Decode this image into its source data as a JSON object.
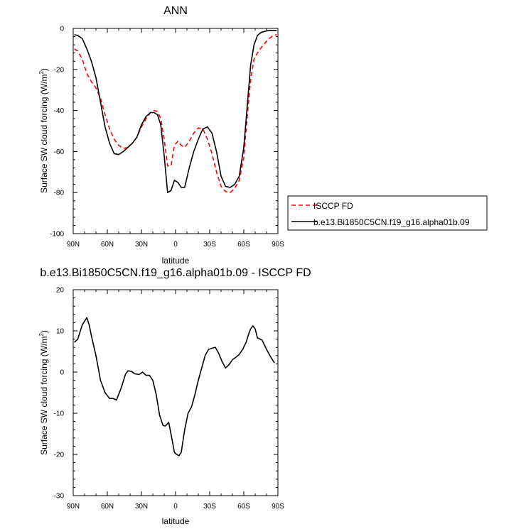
{
  "chart_data": [
    {
      "type": "line",
      "title": "ANN",
      "xlabel": "latitude",
      "ylabel": "Surface SW cloud forcing (W/m",
      "ylabel_sup": "2",
      "ylabel_close": ")",
      "xlim": [
        90,
        -90
      ],
      "ylim": [
        -100,
        0
      ],
      "x_ticks": [
        90,
        60,
        30,
        0,
        -30,
        -60,
        -90
      ],
      "x_tick_labels": [
        "90N",
        "60N",
        "30N",
        "0",
        "30S",
        "60S",
        "90S"
      ],
      "y_ticks": [
        0,
        -20,
        -40,
        -60,
        -80,
        -100
      ],
      "y_tick_labels": [
        "0",
        "-20",
        "-40",
        "-60",
        "-80",
        "-100"
      ],
      "legend_position": "right",
      "series": [
        {
          "name": "ISCCP FD",
          "color": "#ff0000",
          "dash": "dashed",
          "x": [
            89,
            86,
            82,
            78,
            74,
            70,
            66,
            62,
            58,
            54,
            50,
            46,
            42,
            38,
            34,
            30,
            26,
            22,
            19,
            16,
            13,
            10,
            7,
            4,
            1,
            -2,
            -5,
            -8,
            -12,
            -16,
            -20,
            -24,
            -28,
            -32,
            -36,
            -40,
            -44,
            -48,
            -52,
            -56,
            -60,
            -63,
            -66,
            -69,
            -72,
            -75,
            -78,
            -82,
            -86,
            -89
          ],
          "y": [
            -10,
            -11,
            -15,
            -22,
            -26,
            -29,
            -34,
            -42,
            -49,
            -54,
            -57,
            -58.5,
            -58,
            -56,
            -53,
            -48,
            -44,
            -41,
            -40,
            -40.5,
            -44,
            -54,
            -67,
            -67,
            -57,
            -55,
            -57,
            -58,
            -55,
            -51,
            -48.5,
            -49,
            -54,
            -61,
            -70,
            -77,
            -79.5,
            -80,
            -78,
            -74,
            -63,
            -43,
            -25,
            -15,
            -12,
            -9.5,
            -7.5,
            -5,
            -3.5,
            -3
          ]
        },
        {
          "name": "b.e13.Bi1850C5CN.f19_g16.alpha01b.09",
          "color": "#000000",
          "dash": "solid",
          "x": [
            89,
            86,
            82,
            78,
            74,
            70,
            66,
            62,
            58,
            54,
            50,
            46,
            42,
            38,
            34,
            30,
            26,
            22,
            19,
            16,
            13,
            10,
            7,
            4,
            1,
            -2,
            -5,
            -8,
            -12,
            -16,
            -20,
            -24,
            -28,
            -32,
            -36,
            -40,
            -44,
            -48,
            -52,
            -56,
            -60,
            -63,
            -66,
            -69,
            -72,
            -75,
            -78,
            -82,
            -86,
            -89
          ],
          "y": [
            -3,
            -3.5,
            -5,
            -10,
            -16,
            -24,
            -36,
            -48,
            -56,
            -61,
            -61.5,
            -60,
            -58,
            -56,
            -53,
            -47,
            -43,
            -41,
            -41,
            -42,
            -47,
            -62,
            -80,
            -79,
            -74,
            -75,
            -77.5,
            -77.5,
            -68,
            -60,
            -54,
            -49,
            -48,
            -51,
            -60,
            -72,
            -77,
            -77.5,
            -76,
            -72,
            -58,
            -38,
            -18,
            -8,
            -3.5,
            -2,
            -1.5,
            -1,
            -1,
            -1
          ]
        }
      ]
    },
    {
      "type": "line",
      "title": "b.e13.Bi1850C5CN.f19_g16.alpha01b.09 - ISCCP FD",
      "xlabel": "latitude",
      "ylabel": "Surface SW cloud forcing (W/m",
      "ylabel_sup": "2",
      "ylabel_close": ")",
      "xlim": [
        90,
        -90
      ],
      "ylim": [
        -30,
        20
      ],
      "x_ticks": [
        90,
        60,
        30,
        0,
        -30,
        -60,
        -90
      ],
      "x_tick_labels": [
        "90N",
        "60N",
        "30N",
        "0",
        "30S",
        "60S",
        "90S"
      ],
      "y_ticks": [
        20,
        10,
        0,
        -10,
        -20,
        -30
      ],
      "y_tick_labels": [
        "20",
        "10",
        "0",
        "-10",
        "-20",
        "-30"
      ],
      "series": [
        {
          "color": "#000000",
          "dash": "solid",
          "x": [
            89,
            86,
            82,
            78,
            76,
            74,
            70,
            66,
            62,
            58,
            55,
            52,
            48,
            44,
            42,
            39,
            36,
            32,
            29,
            26,
            23,
            20,
            17,
            14,
            11,
            9,
            6,
            3,
            1,
            -1,
            -3,
            -5,
            -8,
            -11,
            -14,
            -17,
            -20,
            -23,
            -26,
            -29,
            -32,
            -35,
            -38,
            -41,
            -44,
            -47,
            -50,
            -53,
            -56,
            -59,
            -62,
            -64,
            -66,
            -68,
            -70,
            -72,
            -76,
            -80,
            -84,
            -87
          ],
          "y": [
            7.2,
            8,
            11.5,
            13.2,
            11.5,
            8.8,
            4,
            -2,
            -5,
            -6.4,
            -6.4,
            -6.8,
            -4,
            -0.5,
            0.3,
            0.2,
            -0.4,
            -0.6,
            0,
            -0.8,
            -0.8,
            -2,
            -5.5,
            -10.5,
            -13,
            -13.1,
            -12.2,
            -16.5,
            -19.5,
            -20,
            -20.3,
            -19.5,
            -14,
            -10,
            -8.5,
            -5.5,
            -2,
            1,
            4,
            5.5,
            5.8,
            6,
            4.5,
            2.5,
            1,
            1.8,
            3,
            3.6,
            4.3,
            5.5,
            7.2,
            9,
            10.5,
            11.2,
            10.5,
            8.3,
            7.8,
            5.5,
            3.5,
            2.2
          ]
        }
      ]
    }
  ]
}
